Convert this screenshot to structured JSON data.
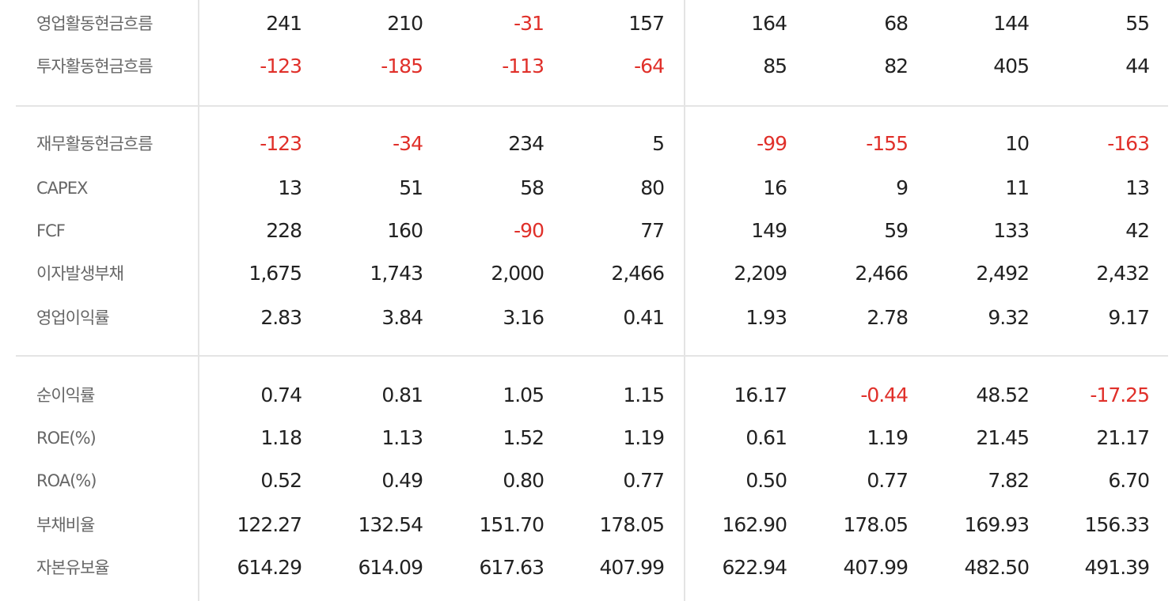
{
  "colors": {
    "negative": "#e0302a",
    "value": "#222222",
    "label": "#666666",
    "divider": "#e4e4e4"
  },
  "rows": [
    {
      "label": "영업활동현금흐름",
      "values": [
        "241",
        "210",
        "-31",
        "157",
        "164",
        "68",
        "144",
        "55"
      ]
    },
    {
      "label": "투자활동현금흐름",
      "values": [
        "-123",
        "-185",
        "-113",
        "-64",
        "85",
        "82",
        "405",
        "44"
      ]
    },
    {
      "label": "재무활동현금흐름",
      "values": [
        "-123",
        "-34",
        "234",
        "5",
        "-99",
        "-155",
        "10",
        "-163"
      ]
    },
    {
      "label": "CAPEX",
      "values": [
        "13",
        "51",
        "58",
        "80",
        "16",
        "9",
        "11",
        "13"
      ]
    },
    {
      "label": "FCF",
      "values": [
        "228",
        "160",
        "-90",
        "77",
        "149",
        "59",
        "133",
        "42"
      ]
    },
    {
      "label": "이자발생부채",
      "values": [
        "1,675",
        "1,743",
        "2,000",
        "2,466",
        "2,209",
        "2,466",
        "2,492",
        "2,432"
      ]
    },
    {
      "label": "영업이익률",
      "values": [
        "2.83",
        "3.84",
        "3.16",
        "0.41",
        "1.93",
        "2.78",
        "9.32",
        "9.17"
      ]
    },
    {
      "label": "순이익률",
      "values": [
        "0.74",
        "0.81",
        "1.05",
        "1.15",
        "16.17",
        "-0.44",
        "48.52",
        "-17.25"
      ]
    },
    {
      "label": "ROE(%)",
      "values": [
        "1.18",
        "1.13",
        "1.52",
        "1.19",
        "0.61",
        "1.19",
        "21.45",
        "21.17"
      ]
    },
    {
      "label": "ROA(%)",
      "values": [
        "0.52",
        "0.49",
        "0.80",
        "0.77",
        "0.50",
        "0.77",
        "7.82",
        "6.70"
      ]
    },
    {
      "label": "부채비율",
      "values": [
        "122.27",
        "132.54",
        "151.70",
        "178.05",
        "162.90",
        "178.05",
        "169.93",
        "156.33"
      ]
    },
    {
      "label": "자본유보율",
      "values": [
        "614.29",
        "614.09",
        "617.63",
        "407.99",
        "622.94",
        "407.99",
        "482.50",
        "491.39"
      ]
    }
  ]
}
